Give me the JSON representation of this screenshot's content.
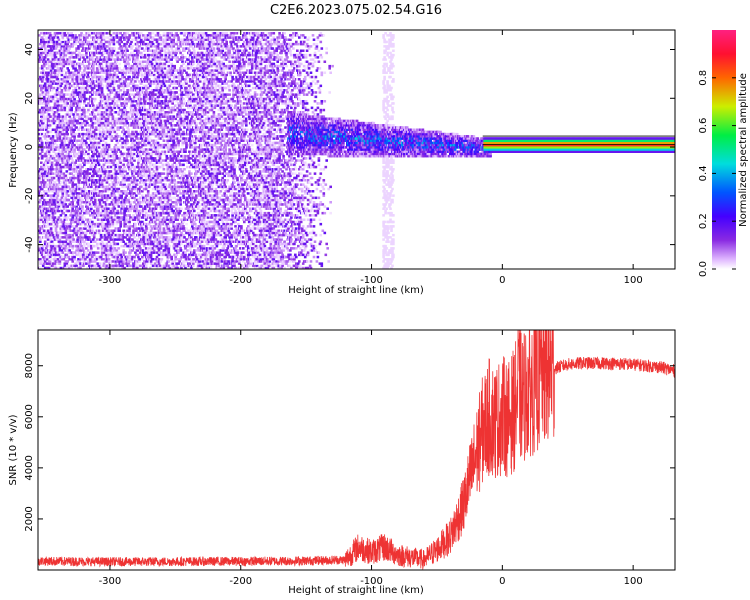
{
  "figure": {
    "title": "C2E6.2023.075.02.54.G16"
  },
  "chart_data": [
    {
      "type": "heatmap",
      "xlabel": "Height of straight line (km)",
      "ylabel": "Frequency (Hz)",
      "xlim": [
        -355,
        132
      ],
      "ylim": [
        -50,
        48
      ],
      "x_ticks": [
        -300,
        -200,
        -100,
        0,
        100
      ],
      "y_ticks": [
        -40,
        -20,
        0,
        20,
        40
      ],
      "colorbar": {
        "label": "Normalized spectral amplitude",
        "range": [
          0,
          1
        ],
        "ticks": [
          0.0,
          0.2,
          0.4,
          0.6,
          0.8
        ],
        "colors": [
          "#ffffff",
          "#e0b8ff",
          "#8a2be2",
          "#4400ff",
          "#0055ff",
          "#00dddd",
          "#00ee44",
          "#ccee00",
          "#ff6600",
          "#ff1030",
          "#ff2080"
        ]
      },
      "series": [
        {
          "description_region": "noise",
          "x_range": [
            -355,
            -130
          ],
          "freq_range": [
            -50,
            48
          ],
          "amplitude": 0.12
        },
        {
          "description_region": "transition",
          "x_range": [
            -165,
            -10
          ],
          "freq_center": [
            6,
            0
          ],
          "amplitude": 0.4
        },
        {
          "description_region": "carrier",
          "x_range": [
            -15,
            132
          ],
          "freq_center": 1.5,
          "amplitude": 0.9
        }
      ]
    },
    {
      "type": "line",
      "xlabel": "Height of straight line (km)",
      "ylabel": "SNR (10 * v/v)",
      "xlim": [
        -355,
        132
      ],
      "ylim": [
        0,
        9400
      ],
      "x_ticks": [
        -300,
        -200,
        -100,
        0,
        100
      ],
      "y_ticks": [
        2000,
        4000,
        6000,
        8000
      ],
      "series": [
        {
          "color": "#ee3333",
          "x": [
            -355,
            -300,
            -250,
            -200,
            -150,
            -120,
            -110,
            -100,
            -90,
            -80,
            -70,
            -60,
            -50,
            -40,
            -30,
            -25,
            -20,
            -15,
            -10,
            -5,
            0,
            5,
            10,
            12,
            15,
            20,
            30,
            40,
            50,
            60,
            80,
            100,
            120,
            132
          ],
          "values": [
            350,
            320,
            330,
            340,
            360,
            400,
            900,
            700,
            900,
            600,
            500,
            400,
            800,
            1300,
            2500,
            3500,
            4500,
            5500,
            6000,
            5800,
            6100,
            5900,
            6400,
            7200,
            6700,
            7100,
            7600,
            7900,
            8050,
            8100,
            8100,
            8050,
            7950,
            7800
          ]
        }
      ]
    }
  ]
}
